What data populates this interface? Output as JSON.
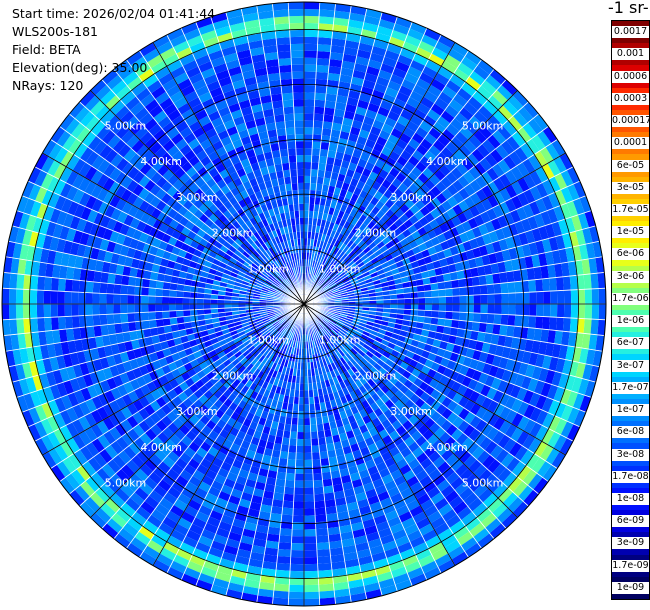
{
  "header": {
    "start_time": "Start time: 2026/02/04 01:41:44",
    "instrument": "WLS200s-181",
    "field": "Field: BETA",
    "elevation": "Elevation(deg): 35.00",
    "nrays": "NRays: 120"
  },
  "colorbar": {
    "title": "-1 sr-",
    "labels": [
      "0.0017",
      "0.001",
      "0.0006",
      "0.0003",
      "0.00017",
      "0.0001",
      "6e-05",
      "3e-05",
      "1.7e-05",
      "1e-05",
      "6e-06",
      "3e-06",
      "1.7e-06",
      "1e-06",
      "6e-07",
      "3e-07",
      "1.7e-07",
      "1e-07",
      "6e-08",
      "3e-08",
      "1.7e-08",
      "1e-08",
      "6e-09",
      "3e-09",
      "1.7e-09",
      "1e-09"
    ],
    "colors": [
      "#7f0000",
      "#b00000",
      "#dd0000",
      "#ff2a00",
      "#ff5500",
      "#ff7a00",
      "#ff9a00",
      "#ffb400",
      "#ffd000",
      "#ffee00",
      "#e8ff1a",
      "#b5ff4a",
      "#82ff7d",
      "#4dffb0",
      "#25f0e0",
      "#00d5ff",
      "#00b0ff",
      "#0090ff",
      "#0070ff",
      "#0050ff",
      "#0030ff",
      "#0010ff",
      "#0000e0",
      "#0000b0",
      "#000080",
      "#000060"
    ]
  },
  "chart_data": {
    "type": "heatmap",
    "projection": "polar-ppi",
    "field": "BETA",
    "elevation_deg": 35.0,
    "nrays": 120,
    "max_range_km": 5.5,
    "range_rings_km": [
      1.0,
      2.0,
      3.0,
      4.0,
      5.0
    ],
    "ring_labels": [
      "1.00km",
      "2.00km",
      "3.00km",
      "4.00km",
      "5.00km"
    ],
    "azimuth_lines_deg": [
      0,
      30,
      45,
      60,
      90,
      120,
      135,
      150,
      180,
      210,
      225,
      240,
      270,
      300,
      315,
      330
    ],
    "color_scale": "log",
    "value_range": [
      1e-09,
      0.0017
    ],
    "typical_value": 3e-08,
    "enhanced_band_km": [
      4.8,
      5.4
    ],
    "enhanced_band_value": 3e-06
  }
}
